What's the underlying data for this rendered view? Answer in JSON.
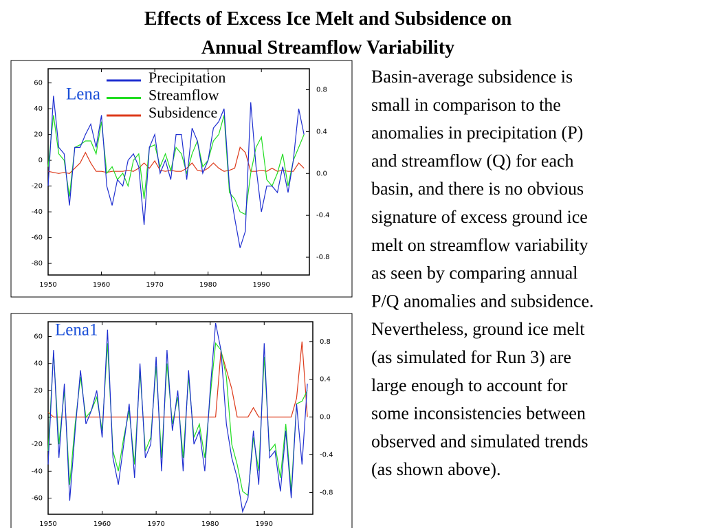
{
  "title": [
    "Effects of Excess Ice Melt and Subsidence on",
    "Annual Streamflow Variability"
  ],
  "paragraph": [
    "Basin-average subsidence is",
    "small in comparison to the",
    "anomalies in precipitation (P)",
    "and streamflow (Q) for each",
    "basin, and there is no obvious",
    "signature of excess ground ice",
    "melt on streamflow variability",
    "as seen by comparing annual",
    "P/Q anomalies and subsidence.",
    "Nevertheless, ground ice melt",
    "(as simulated for Run 3) are",
    "large enough to account for",
    "some inconsistencies between",
    "observed and simulated trends",
    "(as shown above)."
  ],
  "chart_data": [
    {
      "type": "line",
      "title": "Lena",
      "x": [
        1950,
        1951,
        1952,
        1953,
        1954,
        1955,
        1956,
        1957,
        1958,
        1959,
        1960,
        1961,
        1962,
        1963,
        1964,
        1965,
        1966,
        1967,
        1968,
        1969,
        1970,
        1971,
        1972,
        1973,
        1974,
        1975,
        1976,
        1977,
        1978,
        1979,
        1980,
        1981,
        1982,
        1983,
        1984,
        1985,
        1986,
        1987,
        1988,
        1989,
        1990,
        1991,
        1992,
        1993,
        1994,
        1995,
        1996,
        1997,
        1998
      ],
      "xlim": [
        1950,
        1999
      ],
      "xticks": [
        1950,
        1960,
        1970,
        1980,
        1990
      ],
      "ylim": [
        -89,
        71
      ],
      "yticks": [
        -80,
        -60,
        -40,
        -20,
        0,
        20,
        40,
        60
      ],
      "y2lim": [
        -0.97,
        1.0
      ],
      "y2ticks": [
        -0.8,
        -0.4,
        {
          "value": 0,
          "label": "0.0"
        },
        0.4,
        0.8
      ],
      "series": [
        {
          "name": "Precipitation",
          "color": "#1f2fd0",
          "values": [
            -20,
            50,
            10,
            5,
            -35,
            10,
            10,
            20,
            28,
            10,
            35,
            -20,
            -35,
            -15,
            -20,
            0,
            5,
            -5,
            -50,
            10,
            20,
            -10,
            0,
            -15,
            20,
            20,
            -15,
            25,
            15,
            -10,
            0,
            25,
            30,
            40,
            -20,
            -45,
            -68,
            -55,
            45,
            -5,
            -40,
            -20,
            -20,
            -25,
            -5,
            -25,
            0,
            40,
            20
          ]
        },
        {
          "name": "Streamflow",
          "color": "#22dd22",
          "values": [
            -5,
            35,
            5,
            0,
            -28,
            10,
            12,
            15,
            15,
            5,
            30,
            -10,
            -5,
            -15,
            -10,
            -20,
            0,
            5,
            -30,
            10,
            12,
            -5,
            5,
            -8,
            10,
            5,
            -10,
            5,
            15,
            -5,
            0,
            15,
            20,
            35,
            -25,
            -30,
            -40,
            -42,
            -10,
            10,
            18,
            -15,
            -20,
            -10,
            5,
            -20,
            0,
            10,
            20
          ]
        },
        {
          "name": "Subsidence",
          "color": "#dd3a1a",
          "axis": "y2",
          "values": [
            0.02,
            0.01,
            0.0,
            0.01,
            0.0,
            0.05,
            0.1,
            0.2,
            0.1,
            0.02,
            0.02,
            0.01,
            0.02,
            0.02,
            0.02,
            0.03,
            0.02,
            0.05,
            0.1,
            0.05,
            0.12,
            0.03,
            0.02,
            0.03,
            0.02,
            0.02,
            0.05,
            0.1,
            0.03,
            0.02,
            0.05,
            0.1,
            0.05,
            0.02,
            0.03,
            0.05,
            0.25,
            0.2,
            0.02,
            0.02,
            0.03,
            0.02,
            0.05,
            0.02,
            0.03,
            0.02,
            0.02,
            0.1,
            0.05
          ]
        }
      ]
    },
    {
      "type": "line",
      "title": "Lena1",
      "x": [
        1950,
        1951,
        1952,
        1953,
        1954,
        1955,
        1956,
        1957,
        1958,
        1959,
        1960,
        1961,
        1962,
        1963,
        1964,
        1965,
        1966,
        1967,
        1968,
        1969,
        1970,
        1971,
        1972,
        1973,
        1974,
        1975,
        1976,
        1977,
        1978,
        1979,
        1980,
        1981,
        1982,
        1983,
        1984,
        1985,
        1986,
        1987,
        1988,
        1989,
        1990,
        1991,
        1992,
        1993,
        1994,
        1995,
        1996,
        1997,
        1998
      ],
      "xlim": [
        1950,
        1999
      ],
      "xticks": [
        1950,
        1960,
        1970,
        1980,
        1990
      ],
      "ylim": [
        -72,
        71
      ],
      "yticks": [
        -60,
        -40,
        -20,
        0,
        20,
        40,
        60
      ],
      "y2lim": [
        -1.03,
        1.01
      ],
      "y2ticks": [
        -0.8,
        -0.4,
        {
          "value": 0,
          "label": "0.0"
        },
        0.4,
        0.8
      ],
      "series": [
        {
          "color": "#1f2fd0",
          "values": [
            -35,
            50,
            -30,
            25,
            -62,
            -10,
            35,
            -5,
            5,
            20,
            -15,
            65,
            -30,
            -50,
            -20,
            10,
            -45,
            40,
            -30,
            -20,
            45,
            -40,
            50,
            -10,
            20,
            -40,
            35,
            -20,
            -10,
            -40,
            20,
            70,
            50,
            -5,
            -30,
            -45,
            -70,
            -60,
            -10,
            -50,
            55,
            -30,
            -25,
            -55,
            -10,
            -60,
            10,
            -35,
            25
          ]
        },
        {
          "color": "#22dd22",
          "values": [
            -25,
            48,
            -20,
            20,
            -50,
            -5,
            30,
            0,
            5,
            15,
            -10,
            55,
            -25,
            -40,
            -15,
            5,
            -35,
            35,
            -25,
            -15,
            38,
            -30,
            40,
            -5,
            15,
            -30,
            30,
            -15,
            -5,
            -30,
            15,
            55,
            50,
            30,
            -20,
            -35,
            -55,
            -58,
            -15,
            -40,
            45,
            -25,
            -20,
            -45,
            -5,
            -55,
            10,
            12,
            20
          ]
        },
        {
          "color": "#dd3a1a",
          "axis": "y2",
          "values": [
            0.05,
            0.0,
            0.0,
            0.0,
            0.0,
            0.0,
            0.0,
            0.0,
            0.0,
            0.0,
            0.0,
            0.0,
            0.0,
            0.0,
            0.0,
            0.0,
            0.0,
            0.0,
            0.0,
            0.0,
            0.0,
            0.0,
            0.0,
            0.0,
            0.0,
            0.0,
            0.0,
            0.0,
            0.0,
            0.0,
            0.0,
            0.0,
            0.7,
            0.5,
            0.3,
            0.0,
            0.0,
            0.0,
            0.1,
            0.0,
            0.0,
            0.0,
            0.0,
            0.0,
            0.0,
            0.0,
            0.2,
            0.8,
            0.0
          ]
        }
      ]
    }
  ]
}
